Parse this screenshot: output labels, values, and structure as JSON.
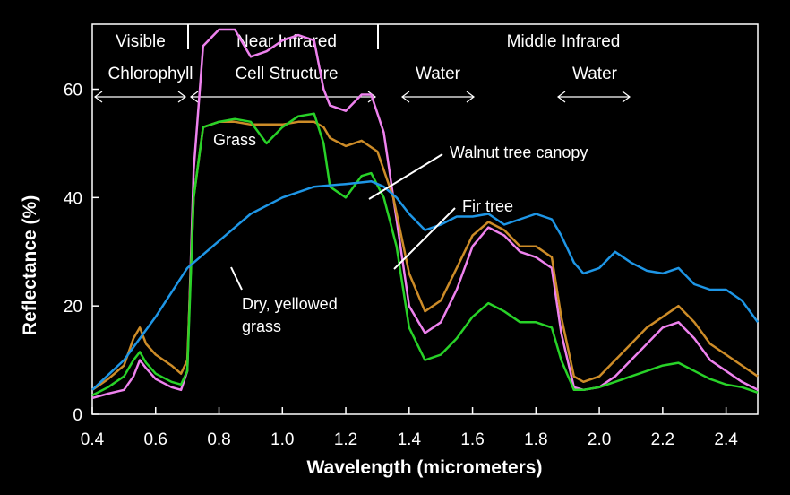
{
  "chart_data": {
    "type": "line",
    "xlabel": "Wavelength (micrometers)",
    "ylabel": "Reflectance (%)",
    "xlim": [
      0.4,
      2.5
    ],
    "ylim": [
      0,
      72
    ],
    "xticks": [
      0.4,
      0.6,
      0.8,
      1.0,
      1.2,
      1.4,
      1.6,
      1.8,
      2.0,
      2.2,
      2.4
    ],
    "xtick_labels": [
      "0.4",
      "0.6",
      "0.8",
      "1.0",
      "1.2",
      "1.4",
      "1.6",
      "1.8",
      "2.0",
      "2.2",
      "2.4"
    ],
    "yticks": [
      0,
      20,
      40,
      60
    ],
    "ytick_labels": [
      "0",
      "20",
      "40",
      "60"
    ],
    "regions": [
      {
        "name": "region-visible",
        "label": "Visible",
        "x_start": 0.4,
        "x_end": 0.7
      },
      {
        "name": "region-near-infrared",
        "label": "Near Infrared",
        "x_start": 0.7,
        "x_end": 1.3
      },
      {
        "name": "region-middle-infrared",
        "label": "Middle Infrared",
        "x_start": 1.3,
        "x_end": 2.5
      }
    ],
    "absorption_features": [
      {
        "name": "feature-chlorophyll",
        "label": "Chlorophyll",
        "x_start": 0.4,
        "x_end": 0.7
      },
      {
        "name": "feature-cell-structure",
        "label": "Cell Structure",
        "x_start": 0.7,
        "x_end": 1.3
      },
      {
        "name": "feature-water-1",
        "label": "Water",
        "x_start": 1.38,
        "x_end": 1.6
      },
      {
        "name": "feature-water-2",
        "label": "Water",
        "x_start": 1.9,
        "x_end": 2.1
      }
    ],
    "series": [
      {
        "name": "Grass",
        "label": "Grass",
        "color": "#ee82ee",
        "x": [
          0.4,
          0.45,
          0.5,
          0.53,
          0.55,
          0.57,
          0.6,
          0.65,
          0.68,
          0.7,
          0.72,
          0.75,
          0.8,
          0.85,
          0.9,
          0.95,
          1.0,
          1.05,
          1.1,
          1.13,
          1.15,
          1.2,
          1.25,
          1.28,
          1.32,
          1.36,
          1.4,
          1.45,
          1.5,
          1.55,
          1.6,
          1.65,
          1.7,
          1.75,
          1.8,
          1.85,
          1.88,
          1.92,
          1.95,
          2.0,
          2.05,
          2.1,
          2.15,
          2.2,
          2.25,
          2.3,
          2.35,
          2.4,
          2.45,
          2.5
        ],
        "y": [
          3,
          3.8,
          4.5,
          7,
          10,
          8.5,
          6.5,
          5,
          4.5,
          8,
          45,
          68,
          71,
          71,
          66,
          67,
          69,
          70,
          69,
          60,
          57,
          56,
          59,
          59,
          52,
          36,
          20,
          15,
          17,
          23,
          31,
          34.5,
          33,
          30,
          29,
          27,
          15,
          5,
          4.5,
          5,
          7,
          10,
          13,
          16,
          17,
          14,
          10,
          8,
          6,
          4.5
        ]
      },
      {
        "name": "Walnut tree canopy",
        "label": "Walnut tree canopy",
        "color": "#cd8c28",
        "x": [
          0.4,
          0.45,
          0.5,
          0.53,
          0.55,
          0.57,
          0.6,
          0.65,
          0.68,
          0.7,
          0.72,
          0.75,
          0.8,
          0.85,
          0.9,
          0.95,
          1.0,
          1.05,
          1.1,
          1.13,
          1.15,
          1.2,
          1.25,
          1.3,
          1.35,
          1.4,
          1.45,
          1.5,
          1.55,
          1.6,
          1.65,
          1.7,
          1.75,
          1.8,
          1.85,
          1.88,
          1.92,
          1.95,
          2.0,
          2.05,
          2.1,
          2.15,
          2.2,
          2.25,
          2.3,
          2.35,
          2.4,
          2.45,
          2.5
        ],
        "y": [
          4.5,
          6.5,
          9,
          14,
          16,
          13,
          11,
          9,
          7.5,
          10,
          40,
          53,
          54,
          54,
          53.5,
          53.5,
          53.5,
          54,
          54,
          53,
          51,
          49.5,
          50.5,
          48.5,
          40,
          26,
          19,
          21,
          27,
          33,
          35.5,
          34,
          31,
          31,
          29,
          18,
          7,
          6,
          7,
          10,
          13,
          16,
          18,
          20,
          17,
          13,
          11,
          9,
          7
        ]
      },
      {
        "name": "Fir tree",
        "label": "Fir tree",
        "color": "#28d228",
        "x": [
          0.4,
          0.45,
          0.5,
          0.53,
          0.55,
          0.57,
          0.6,
          0.65,
          0.68,
          0.7,
          0.72,
          0.75,
          0.8,
          0.85,
          0.9,
          0.95,
          1.0,
          1.05,
          1.1,
          1.13,
          1.15,
          1.2,
          1.25,
          1.28,
          1.32,
          1.36,
          1.4,
          1.45,
          1.5,
          1.55,
          1.6,
          1.65,
          1.7,
          1.75,
          1.8,
          1.85,
          1.88,
          1.92,
          1.95,
          2.0,
          2.05,
          2.1,
          2.15,
          2.2,
          2.25,
          2.3,
          2.35,
          2.4,
          2.45,
          2.5
        ],
        "y": [
          3.5,
          5,
          7,
          10,
          11.5,
          9.5,
          7.5,
          6,
          5.5,
          8,
          40,
          53,
          54,
          54.5,
          54,
          50,
          53,
          55,
          55.5,
          50,
          42,
          40,
          44,
          44.5,
          40,
          31,
          16,
          10,
          11,
          14,
          18,
          20.5,
          19,
          17,
          17,
          16,
          10,
          4.5,
          4.5,
          5,
          6,
          7,
          8,
          9,
          9.5,
          8,
          6.5,
          5.5,
          5,
          4
        ]
      },
      {
        "name": "Dry, yellowed grass",
        "label": "Dry, yellowed\ngrass",
        "color": "#1e96e6",
        "x": [
          0.4,
          0.5,
          0.6,
          0.7,
          0.8,
          0.9,
          1.0,
          1.1,
          1.2,
          1.28,
          1.32,
          1.36,
          1.4,
          1.45,
          1.5,
          1.55,
          1.6,
          1.65,
          1.7,
          1.75,
          1.8,
          1.85,
          1.88,
          1.92,
          1.95,
          2.0,
          2.05,
          2.1,
          2.15,
          2.2,
          2.25,
          2.3,
          2.35,
          2.4,
          2.45,
          2.5
        ],
        "y": [
          4.5,
          10,
          18,
          27,
          32,
          37,
          40,
          42,
          42.5,
          43,
          42,
          40,
          37,
          34,
          35,
          36.5,
          36.5,
          37,
          35,
          36,
          37,
          36,
          33,
          28,
          26,
          27,
          30,
          28,
          26.5,
          26,
          27,
          24,
          23,
          23,
          21,
          17
        ]
      }
    ],
    "annotations": [
      {
        "name": "label-grass",
        "text": "Grass",
        "series": "Grass"
      },
      {
        "name": "label-walnut",
        "text": "Walnut tree canopy",
        "series": "Walnut tree canopy"
      },
      {
        "name": "label-fir",
        "text": "Fir tree",
        "series": "Fir tree"
      },
      {
        "name": "label-dry-grass-line1",
        "text": "Dry, yellowed",
        "series": "Dry, yellowed grass"
      },
      {
        "name": "label-dry-grass-line2",
        "text": "grass",
        "series": "Dry, yellowed grass"
      }
    ]
  }
}
